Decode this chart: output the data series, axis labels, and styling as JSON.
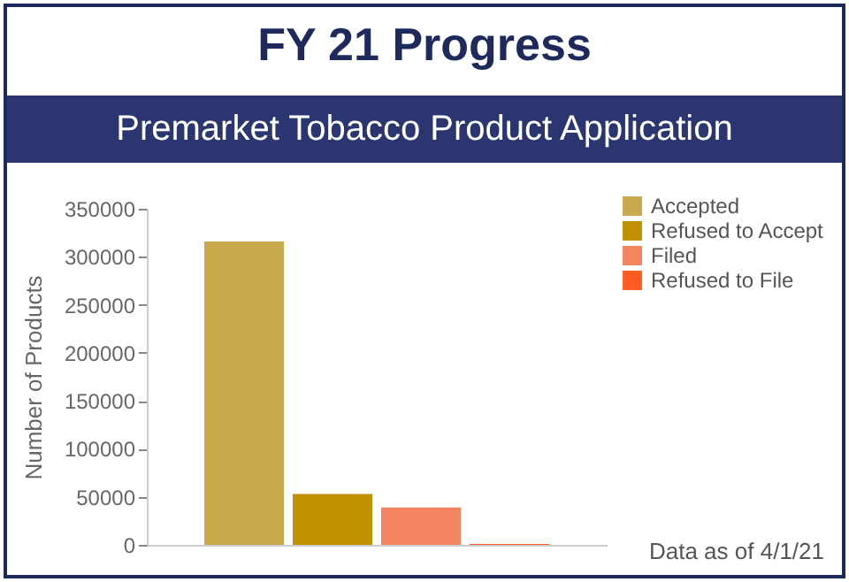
{
  "chart_data": {
    "type": "bar",
    "title": "FY 21 Progress",
    "subtitle": "Premarket Tobacco Product Application",
    "ylabel": "Number of Products",
    "categories": [
      null
    ],
    "series": [
      {
        "name": "Accepted",
        "color": "#c9a94e",
        "values": [
          316000
        ]
      },
      {
        "name": "Refused to Accept",
        "color": "#bf9000",
        "values": [
          53000
        ]
      },
      {
        "name": "Filed",
        "color": "#f4845f",
        "values": [
          39000
        ]
      },
      {
        "name": "Refused to File",
        "color": "#ff5a1f",
        "values": [
          1000
        ]
      }
    ],
    "ylim": [
      0,
      350000
    ],
    "yticks": [
      0,
      50000,
      100000,
      150000,
      200000,
      250000,
      300000,
      350000
    ],
    "grid": false,
    "legend": "top right",
    "tick_labels": "y",
    "annotations": [
      "Data as of 4/1/21"
    ]
  }
}
